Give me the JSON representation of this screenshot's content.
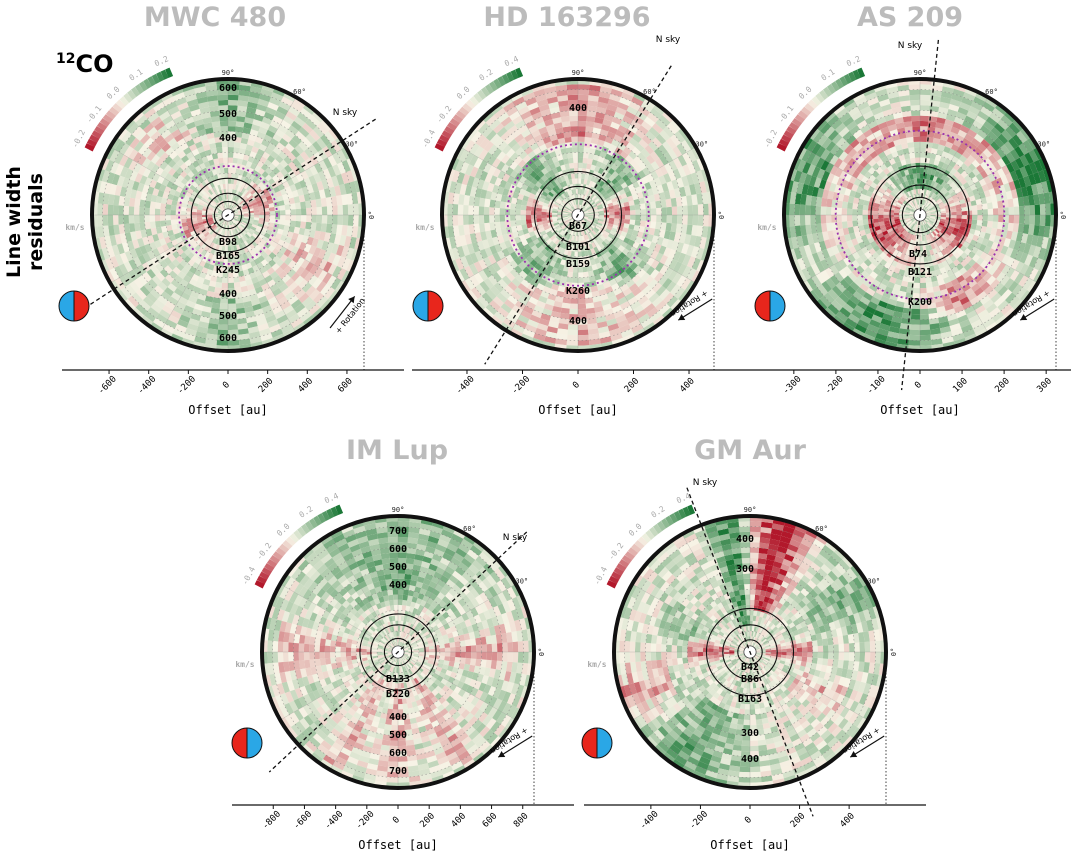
{
  "figure": {
    "ylabel": "Line width residuals",
    "tracer_mass": "12",
    "tracer_name": "CO",
    "xlabel": "Offset [au]"
  },
  "colors": {
    "positive": "#b2182b",
    "negative": "#1b7837",
    "neutral": "#f7f4e6",
    "title": "#bcbcbc",
    "ring": "#9b2fae",
    "rotation_red": "#e8261c",
    "rotation_blue": "#2aa7e6"
  },
  "chart_data": [
    {
      "type": "polar-map",
      "title": "MWC 480",
      "xlabel": "Offset [au]",
      "xticks": [
        -600,
        -400,
        -200,
        0,
        200,
        400,
        600
      ],
      "xlim": [
        -700,
        700
      ],
      "colorbar": {
        "ticks": [
          "0.2",
          "0.1",
          "0.0",
          "-0.1",
          "-0.2"
        ],
        "unit": "km/s",
        "range": [
          -0.2,
          0.2
        ]
      },
      "angles": [
        "90°",
        "60°",
        "30°",
        "0°"
      ],
      "north_label": "N_sky",
      "rotation_label": "+ Rotation",
      "radial_labels_upper": [
        "600",
        "500",
        "400"
      ],
      "radial_labels_lower": [
        "400",
        "500",
        "600"
      ],
      "features": [
        "B98",
        "B165",
        "K245"
      ],
      "rotation_icon": "blue-left-red-right"
    },
    {
      "type": "polar-map",
      "title": "HD 163296",
      "xlabel": "Offset [au]",
      "xticks": [
        -400,
        -200,
        0,
        200,
        400
      ],
      "xlim": [
        -500,
        500
      ],
      "colorbar": {
        "ticks": [
          "0.4",
          "0.2",
          "0.0",
          "-0.2",
          "-0.4"
        ],
        "unit": "km/s",
        "range": [
          -0.4,
          0.4
        ]
      },
      "angles": [
        "90°",
        "60°",
        "30°",
        "0°"
      ],
      "north_label": "N_sky",
      "rotation_label": "+ Rotation",
      "radial_labels_upper": [
        "400"
      ],
      "radial_labels_lower": [
        "400"
      ],
      "features": [
        "B67",
        "B101",
        "B159",
        "K260"
      ],
      "rotation_icon": "blue-left-red-right"
    },
    {
      "type": "polar-map",
      "title": "AS 209",
      "xlabel": "Offset [au]",
      "xticks": [
        -300,
        -200,
        -100,
        0,
        100,
        200,
        300
      ],
      "xlim": [
        -330,
        330
      ],
      "colorbar": {
        "ticks": [
          "0.2",
          "0.1",
          "0.0",
          "-0.1",
          "-0.2"
        ],
        "unit": "km/s",
        "range": [
          -0.2,
          0.2
        ]
      },
      "angles": [
        "90°",
        "60°",
        "30°",
        "0°"
      ],
      "north_label": "N_sky",
      "rotation_label": "+ Rotation",
      "radial_labels_upper": [],
      "radial_labels_lower": [],
      "features": [
        "B74",
        "B121",
        "K200"
      ],
      "rotation_icon": "red-left-blue-right"
    },
    {
      "type": "polar-map",
      "title": "IM Lup",
      "xlabel": "Offset [au]",
      "xticks": [
        -800,
        -600,
        -400,
        -200,
        0,
        200,
        400,
        600,
        800
      ],
      "xlim": [
        -890,
        890
      ],
      "colorbar": {
        "ticks": [
          "0.4",
          "0.2",
          "0.0",
          "-0.2",
          "-0.4"
        ],
        "unit": "km/s",
        "range": [
          -0.4,
          0.4
        ]
      },
      "angles": [
        "90°",
        "60°",
        "30°",
        "0°"
      ],
      "north_label": "N_sky",
      "rotation_label": "+ Rotation",
      "radial_labels_upper": [
        "700",
        "600",
        "500",
        "400"
      ],
      "radial_labels_lower": [
        "400",
        "500",
        "600",
        "700"
      ],
      "features": [
        "B133",
        "B220"
      ],
      "rotation_icon": "red-left-blue-right"
    },
    {
      "type": "polar-map",
      "title": "GM Aur",
      "xlabel": "Offset [au]",
      "xticks": [
        -400,
        -200,
        0,
        200,
        400
      ],
      "xlim": [
        -560,
        560
      ],
      "colorbar": {
        "ticks": [
          "0.4",
          "0.2",
          "0.0",
          "-0.2",
          "-0.4"
        ],
        "unit": "km/s",
        "range": [
          -0.4,
          0.4
        ]
      },
      "angles": [
        "90°",
        "60°",
        "30°",
        "0°"
      ],
      "north_label": "N_sky",
      "rotation_label": "+ Rotation",
      "radial_labels_upper": [
        "400",
        "300"
      ],
      "radial_labels_lower": [
        "300",
        "400"
      ],
      "features": [
        "B42",
        "B86",
        "B163"
      ],
      "rotation_icon": "red-left-blue-right"
    }
  ]
}
